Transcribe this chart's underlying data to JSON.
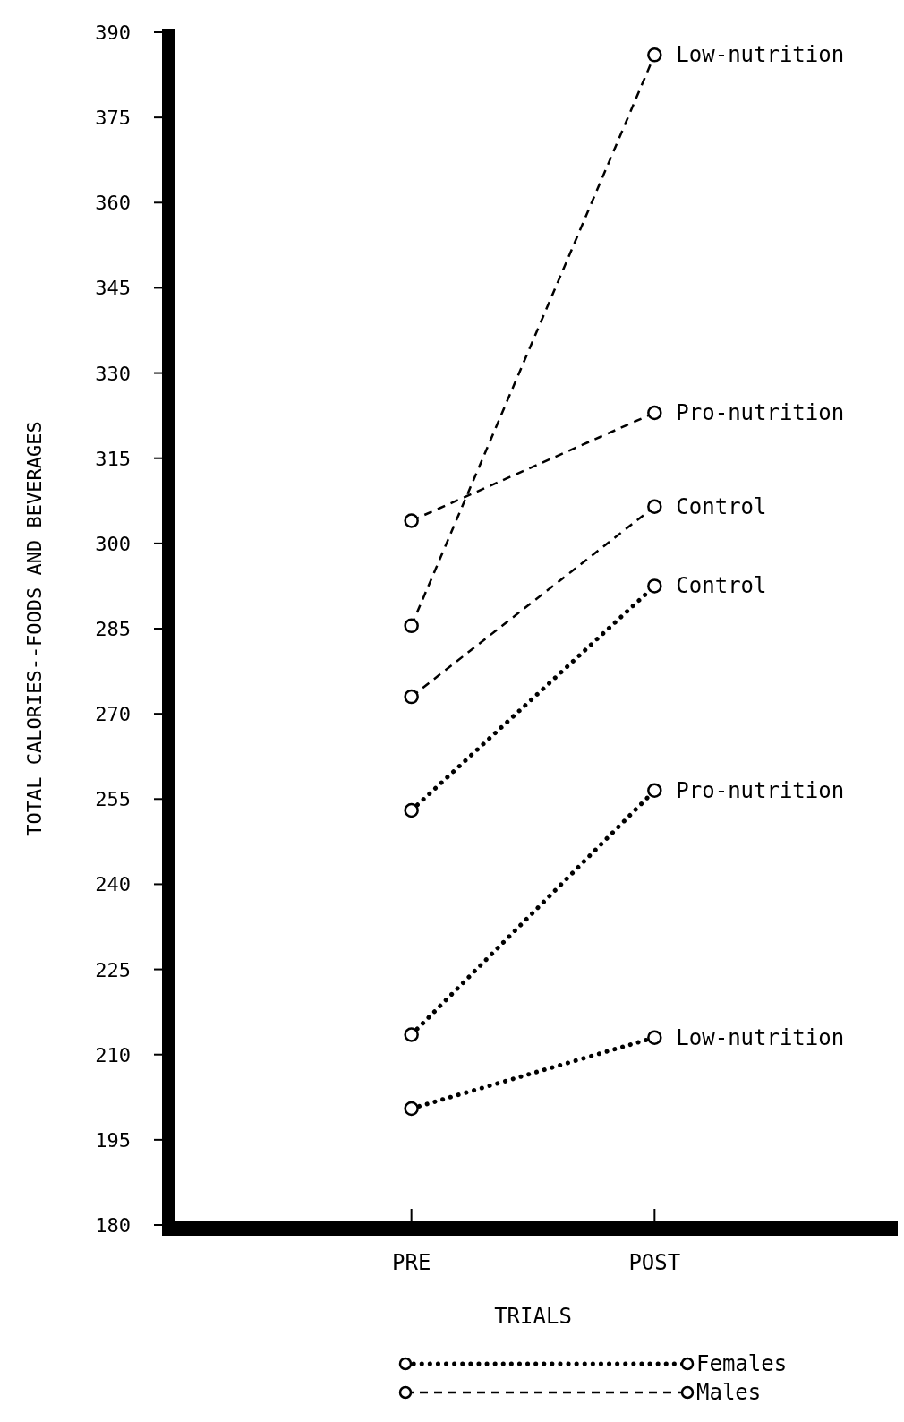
{
  "chart_data": {
    "type": "line",
    "xlabel": "TRIALS",
    "ylabel": "TOTAL CALORIES--FOODS AND BEVERAGES",
    "categories": [
      "PRE",
      "POST"
    ],
    "ylim": [
      180,
      390
    ],
    "yticks": [
      180,
      195,
      210,
      225,
      240,
      255,
      270,
      285,
      300,
      315,
      330,
      345,
      360,
      375,
      390
    ],
    "marker": "circle",
    "legend": false,
    "series": [
      {
        "name": "Control",
        "color": "#000000",
        "line_style": "dotted",
        "values": [
          253,
          292.5
        ]
      },
      {
        "name": "Pro-nutrition",
        "color": "#000000",
        "line_style": "dotted",
        "values": [
          213.5,
          256.5
        ]
      },
      {
        "name": "Low-nutrition",
        "color": "#000000",
        "line_style": "dotted",
        "values": [
          200.5,
          213
        ]
      },
      {
        "name": "Low-nutrition",
        "color": "#000000",
        "line_style": "dashed",
        "values": [
          285.5,
          386
        ]
      },
      {
        "name": "Pro-nutrition",
        "color": "#000000",
        "line_style": "dashed",
        "values": [
          304,
          323
        ]
      },
      {
        "name": "Control",
        "color": "#000000",
        "line_style": "dashed",
        "values": [
          273,
          306.5
        ]
      }
    ],
    "annotations": [
      "Females",
      "Males"
    ]
  }
}
